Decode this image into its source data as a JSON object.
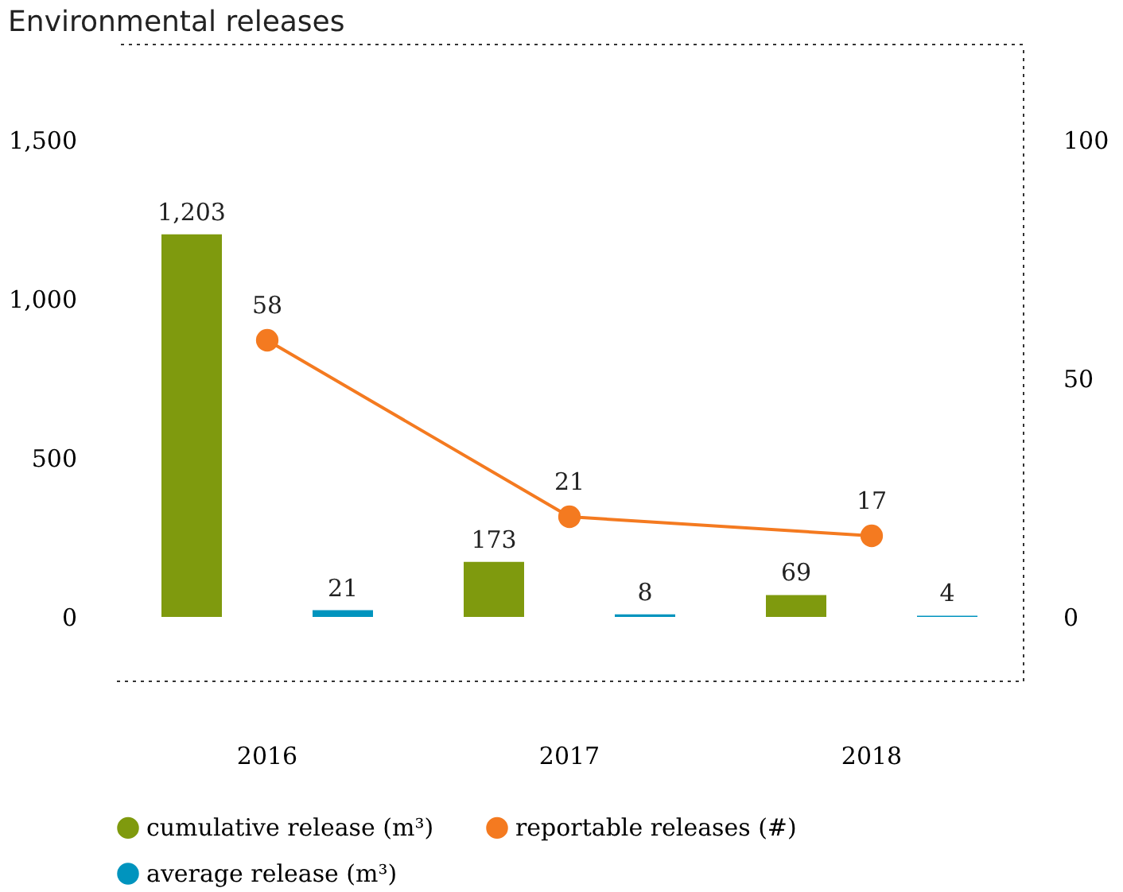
{
  "chart_data": {
    "type": "bar",
    "title": "Environmental releases",
    "categories": [
      "2016",
      "2017",
      "2018"
    ],
    "series": [
      {
        "name": "cumulative release (m³)",
        "color": "#7f9a0e",
        "values": [
          1203,
          173,
          69
        ],
        "value_labels": [
          "1,203",
          "173",
          "69"
        ]
      },
      {
        "name": "reportable releases (#)",
        "type": "line",
        "axis": "y2",
        "marker": "circle",
        "color": "#f47a20",
        "values": [
          58,
          21,
          17
        ],
        "value_labels": [
          "58",
          "21",
          "17"
        ]
      },
      {
        "name": "average release (m³)",
        "color": "#0094be",
        "values": [
          21,
          8,
          4
        ],
        "value_labels": [
          "21",
          "8",
          "4"
        ]
      }
    ],
    "ylim": [
      -200,
      1800
    ],
    "yticks": [
      0,
      500,
      {
        "value": 1000,
        "label": "1,000"
      },
      {
        "value": 1500,
        "label": "1,500"
      }
    ],
    "y2lim": [
      -13.33,
      120
    ],
    "y2ticks": [
      0,
      50,
      100
    ],
    "grid": false,
    "legend": "bottom"
  }
}
